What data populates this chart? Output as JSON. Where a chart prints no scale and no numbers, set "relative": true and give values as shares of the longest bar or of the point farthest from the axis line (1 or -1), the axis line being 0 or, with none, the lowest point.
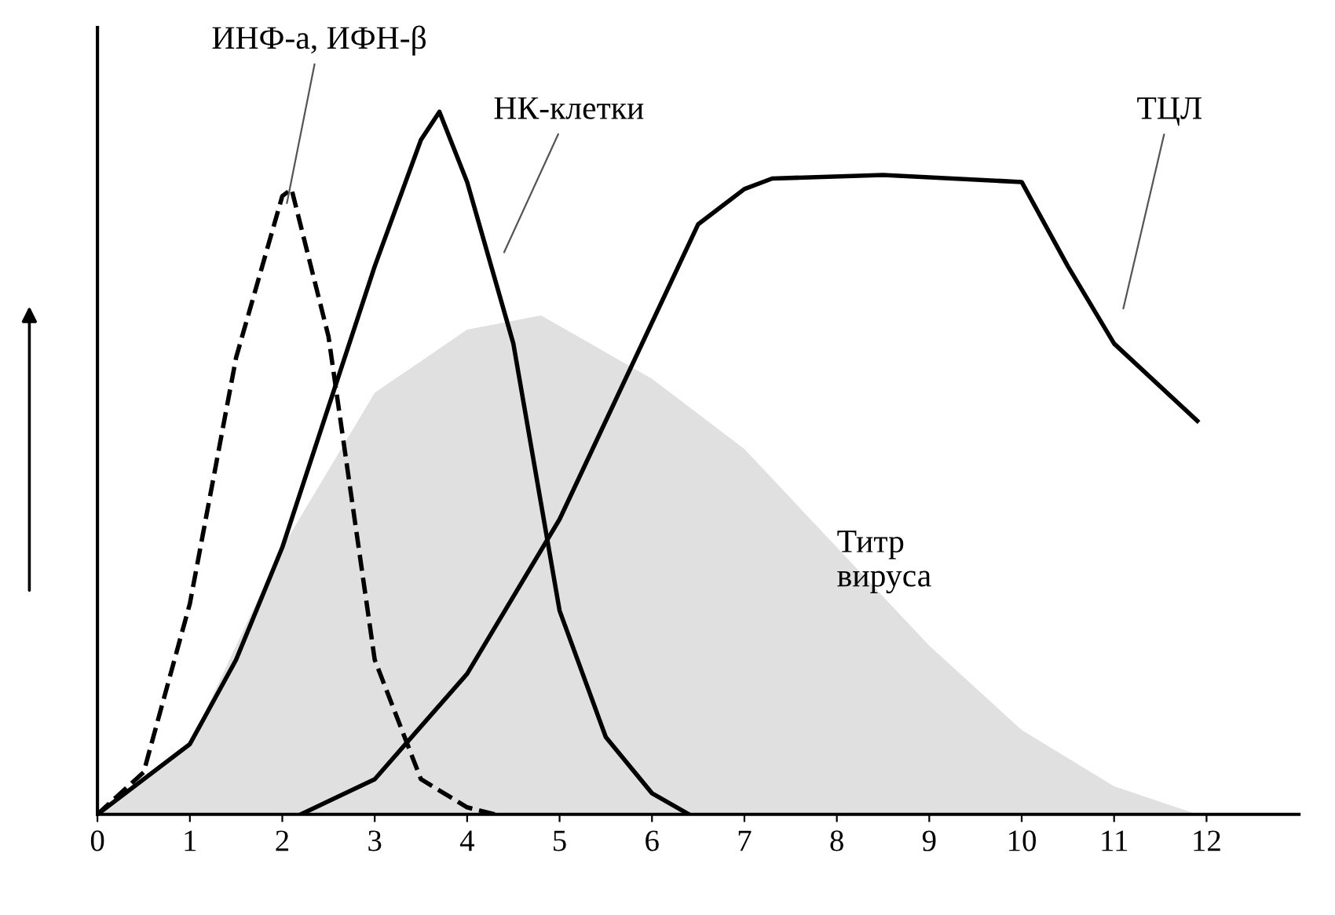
{
  "chart_data": {
    "type": "line",
    "relative": true,
    "xlim": [
      0,
      13
    ],
    "xticks": [
      0,
      1,
      2,
      3,
      4,
      5,
      6,
      7,
      8,
      9,
      10,
      11,
      12
    ],
    "grid": false,
    "legend": false,
    "marker": "none",
    "series": [
      {
        "name": "Титр вируса",
        "type": "area",
        "color": "#e0e0e0",
        "x": [
          0,
          1,
          2,
          3,
          4,
          4.8,
          6,
          7,
          8,
          9,
          10,
          11,
          11.9
        ],
        "values": [
          0,
          0.1,
          0.38,
          0.6,
          0.69,
          0.71,
          0.62,
          0.52,
          0.38,
          0.24,
          0.12,
          0.04,
          0
        ]
      },
      {
        "name": "ИНФ-а, ИФН-β",
        "line_style": "dashed",
        "color": "#000000",
        "x": [
          0,
          0.5,
          1,
          1.5,
          2,
          2.1,
          2.5,
          3,
          3.5,
          4,
          4.3
        ],
        "values": [
          0,
          0.06,
          0.3,
          0.65,
          0.88,
          0.89,
          0.68,
          0.22,
          0.05,
          0.01,
          0
        ]
      },
      {
        "name": "НК-клетки",
        "line_style": "solid",
        "color": "#000000",
        "x": [
          0,
          1,
          1.5,
          2,
          2.5,
          3,
          3.5,
          3.7,
          4,
          4.5,
          5,
          5.5,
          6,
          6.4
        ],
        "values": [
          0,
          0.1,
          0.22,
          0.38,
          0.58,
          0.78,
          0.96,
          1,
          0.9,
          0.67,
          0.29,
          0.11,
          0.03,
          0
        ]
      },
      {
        "name": "ТЦЛ",
        "line_style": "solid",
        "color": "#000000",
        "x": [
          2.2,
          3,
          4,
          5,
          6,
          6.5,
          7,
          7.3,
          8.5,
          10,
          10.5,
          11,
          11.9
        ],
        "values": [
          0,
          0.05,
          0.2,
          0.42,
          0.7,
          0.84,
          0.89,
          0.905,
          0.91,
          0.9,
          0.78,
          0.67,
          0.56
        ]
      }
    ]
  }
}
